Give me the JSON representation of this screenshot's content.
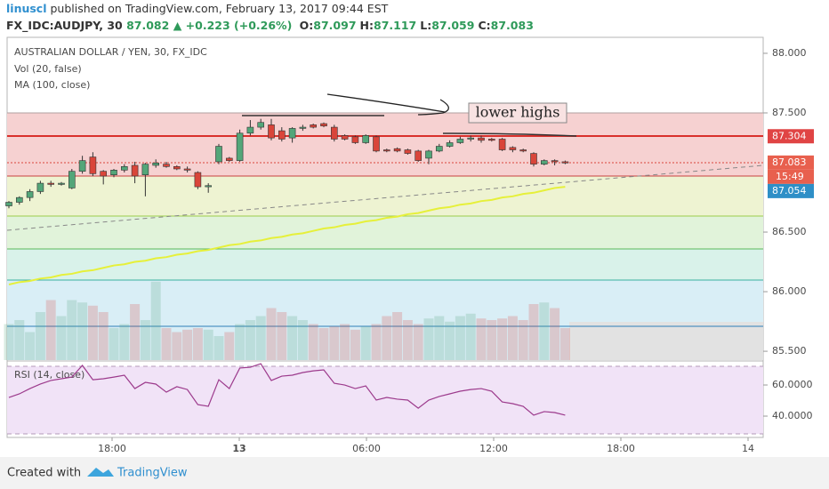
{
  "header": {
    "author": "linuscl",
    "published": "published on TradingView.com, February 13, 2017 09:44 EST",
    "symbol": "FX_IDC:AUDJPY, 30",
    "last": "87.082",
    "change": "▲ +0.223 (+0.26%)",
    "ohlc": [
      {
        "label": "O:",
        "value": "87.097"
      },
      {
        "label": "H:",
        "value": "87.117"
      },
      {
        "label": "L:",
        "value": "87.059"
      },
      {
        "label": "C:",
        "value": "87.083"
      }
    ]
  },
  "chart_data": [
    {
      "type": "candlestick",
      "title": "AUSTRALIAN DOLLAR / YEN, 30, FX_IDC",
      "indicators": [
        "Vol (20, false)",
        "MA (100, close)"
      ],
      "up_color": "#53a679",
      "down_color": "#d9453a",
      "open": [
        86.72,
        86.75,
        86.79,
        86.84,
        86.91,
        86.9,
        86.87,
        87.01,
        87.13,
        87.01,
        86.98,
        87.02,
        87.06,
        86.98,
        87.06,
        87.07,
        87.05,
        87.03,
        87.0,
        86.88,
        87.09,
        87.12,
        87.1,
        87.33,
        87.38,
        87.4,
        87.35,
        87.29,
        87.37,
        87.4,
        87.41,
        87.38,
        87.31,
        87.3,
        87.25,
        87.3,
        87.19,
        87.2,
        87.19,
        87.18,
        87.12,
        87.18,
        87.22,
        87.25,
        87.28,
        87.29,
        87.28,
        87.28,
        87.21,
        87.19,
        87.16,
        87.07,
        87.1,
        87.09
      ],
      "high": [
        86.76,
        86.8,
        86.86,
        86.93,
        86.93,
        86.92,
        87.03,
        87.14,
        87.17,
        87.02,
        87.03,
        87.07,
        87.09,
        87.08,
        87.11,
        87.09,
        87.06,
        87.05,
        87.01,
        86.91,
        87.24,
        87.13,
        87.36,
        87.44,
        87.45,
        87.45,
        87.38,
        87.38,
        87.4,
        87.41,
        87.42,
        87.4,
        87.32,
        87.31,
        87.32,
        87.31,
        87.2,
        87.21,
        87.2,
        87.19,
        87.19,
        87.24,
        87.27,
        87.3,
        87.31,
        87.31,
        87.29,
        87.29,
        87.22,
        87.2,
        87.17,
        87.11,
        87.11,
        87.1
      ],
      "low": [
        86.7,
        86.73,
        86.76,
        86.82,
        86.88,
        86.89,
        86.86,
        86.99,
        86.97,
        86.9,
        86.96,
        87.0,
        86.91,
        86.8,
        87.04,
        87.04,
        87.02,
        87.0,
        86.86,
        86.83,
        87.07,
        87.09,
        87.09,
        87.31,
        87.36,
        87.27,
        87.26,
        87.25,
        87.35,
        87.37,
        87.38,
        87.26,
        87.27,
        87.24,
        87.24,
        87.17,
        87.17,
        87.17,
        87.15,
        87.09,
        87.07,
        87.17,
        87.21,
        87.24,
        87.26,
        87.25,
        87.26,
        87.18,
        87.17,
        87.17,
        87.05,
        87.06,
        87.06,
        87.07
      ],
      "close": [
        86.75,
        86.79,
        86.84,
        86.91,
        86.9,
        86.91,
        87.01,
        87.1,
        86.99,
        86.97,
        87.02,
        87.05,
        86.97,
        87.07,
        87.08,
        87.05,
        87.03,
        87.02,
        86.88,
        86.89,
        87.22,
        87.1,
        87.33,
        87.38,
        87.42,
        87.29,
        87.28,
        87.37,
        87.38,
        87.38,
        87.39,
        87.28,
        87.28,
        87.25,
        87.31,
        87.18,
        87.18,
        87.18,
        87.16,
        87.1,
        87.18,
        87.22,
        87.25,
        87.28,
        87.29,
        87.27,
        87.27,
        87.19,
        87.19,
        87.18,
        87.07,
        87.1,
        87.09,
        87.08
      ],
      "volume": {
        "ylim": [
          0,
          100
        ],
        "values": [
          45,
          50,
          35,
          60,
          75,
          55,
          75,
          72,
          68,
          60,
          40,
          45,
          70,
          50,
          98,
          40,
          35,
          38,
          40,
          38,
          30,
          35,
          45,
          50,
          55,
          65,
          60,
          55,
          50,
          45,
          40,
          42,
          45,
          38,
          42,
          45,
          55,
          60,
          50,
          45,
          52,
          55,
          48,
          55,
          58,
          52,
          50,
          52,
          55,
          50,
          70,
          72,
          65,
          40
        ]
      },
      "ma": {
        "color": "#e6f03a",
        "values": [
          86.06,
          86.08,
          86.09,
          86.11,
          86.12,
          86.14,
          86.15,
          86.17,
          86.18,
          86.2,
          86.22,
          86.23,
          86.25,
          86.26,
          86.28,
          86.29,
          86.31,
          86.32,
          86.34,
          86.35,
          86.37,
          86.39,
          86.4,
          86.42,
          86.43,
          86.45,
          86.46,
          86.48,
          86.49,
          86.51,
          86.53,
          86.54,
          86.56,
          86.57,
          86.59,
          86.6,
          86.62,
          86.63,
          86.65,
          86.66,
          86.68,
          86.7,
          86.71,
          86.73,
          86.74,
          86.76,
          86.77,
          86.79,
          86.8,
          86.82,
          86.83,
          86.85,
          86.87,
          86.88
        ]
      },
      "ylim": [
        85.426,
        88.134
      ],
      "yticks": [
        {
          "value": 85.5,
          "label": "85.500"
        },
        {
          "value": 86,
          "label": "86.000"
        },
        {
          "value": 86.5,
          "label": "86.500"
        },
        {
          "value": 87.5,
          "label": "87.500"
        },
        {
          "value": 88,
          "label": "88.000"
        }
      ],
      "xticks": [
        "18:00",
        "13",
        "06:00",
        "12:00",
        "18:00",
        "14"
      ],
      "price_labels": [
        {
          "value": 87.304,
          "color": "#e04444"
        },
        {
          "value": 87.083,
          "color": "#e8604e",
          "countdown": "15:49"
        },
        {
          "value": 87.054,
          "color": "#2e8fc7"
        }
      ],
      "annotation": "lower highs"
    },
    {
      "type": "line",
      "title": "RSI (14, close)",
      "color": "#9c3a8c",
      "ylim": [
        26.3,
        74.3
      ],
      "yticks": [
        {
          "value": 60,
          "label": "60.0000"
        },
        {
          "value": 40,
          "label": "40.0000"
        }
      ],
      "values": [
        52.0,
        54.3,
        57.7,
        60.6,
        62.9,
        64.0,
        65.1,
        72.6,
        63.4,
        64.0,
        65.1,
        66.3,
        57.7,
        61.7,
        60.6,
        55.4,
        58.9,
        57.1,
        47.4,
        46.3,
        63.4,
        57.7,
        70.9,
        71.4,
        73.7,
        62.9,
        65.7,
        66.3,
        68.0,
        69.1,
        69.7,
        61.1,
        60.0,
        57.7,
        59.4,
        50.3,
        52.0,
        50.9,
        50.3,
        45.1,
        50.3,
        52.6,
        54.3,
        56.0,
        57.1,
        57.7,
        56.0,
        49.1,
        48.0,
        46.3,
        40.6,
        42.9,
        42.3,
        40.6
      ]
    }
  ],
  "footer": {
    "created": "Created with",
    "brand": "TradingView"
  }
}
